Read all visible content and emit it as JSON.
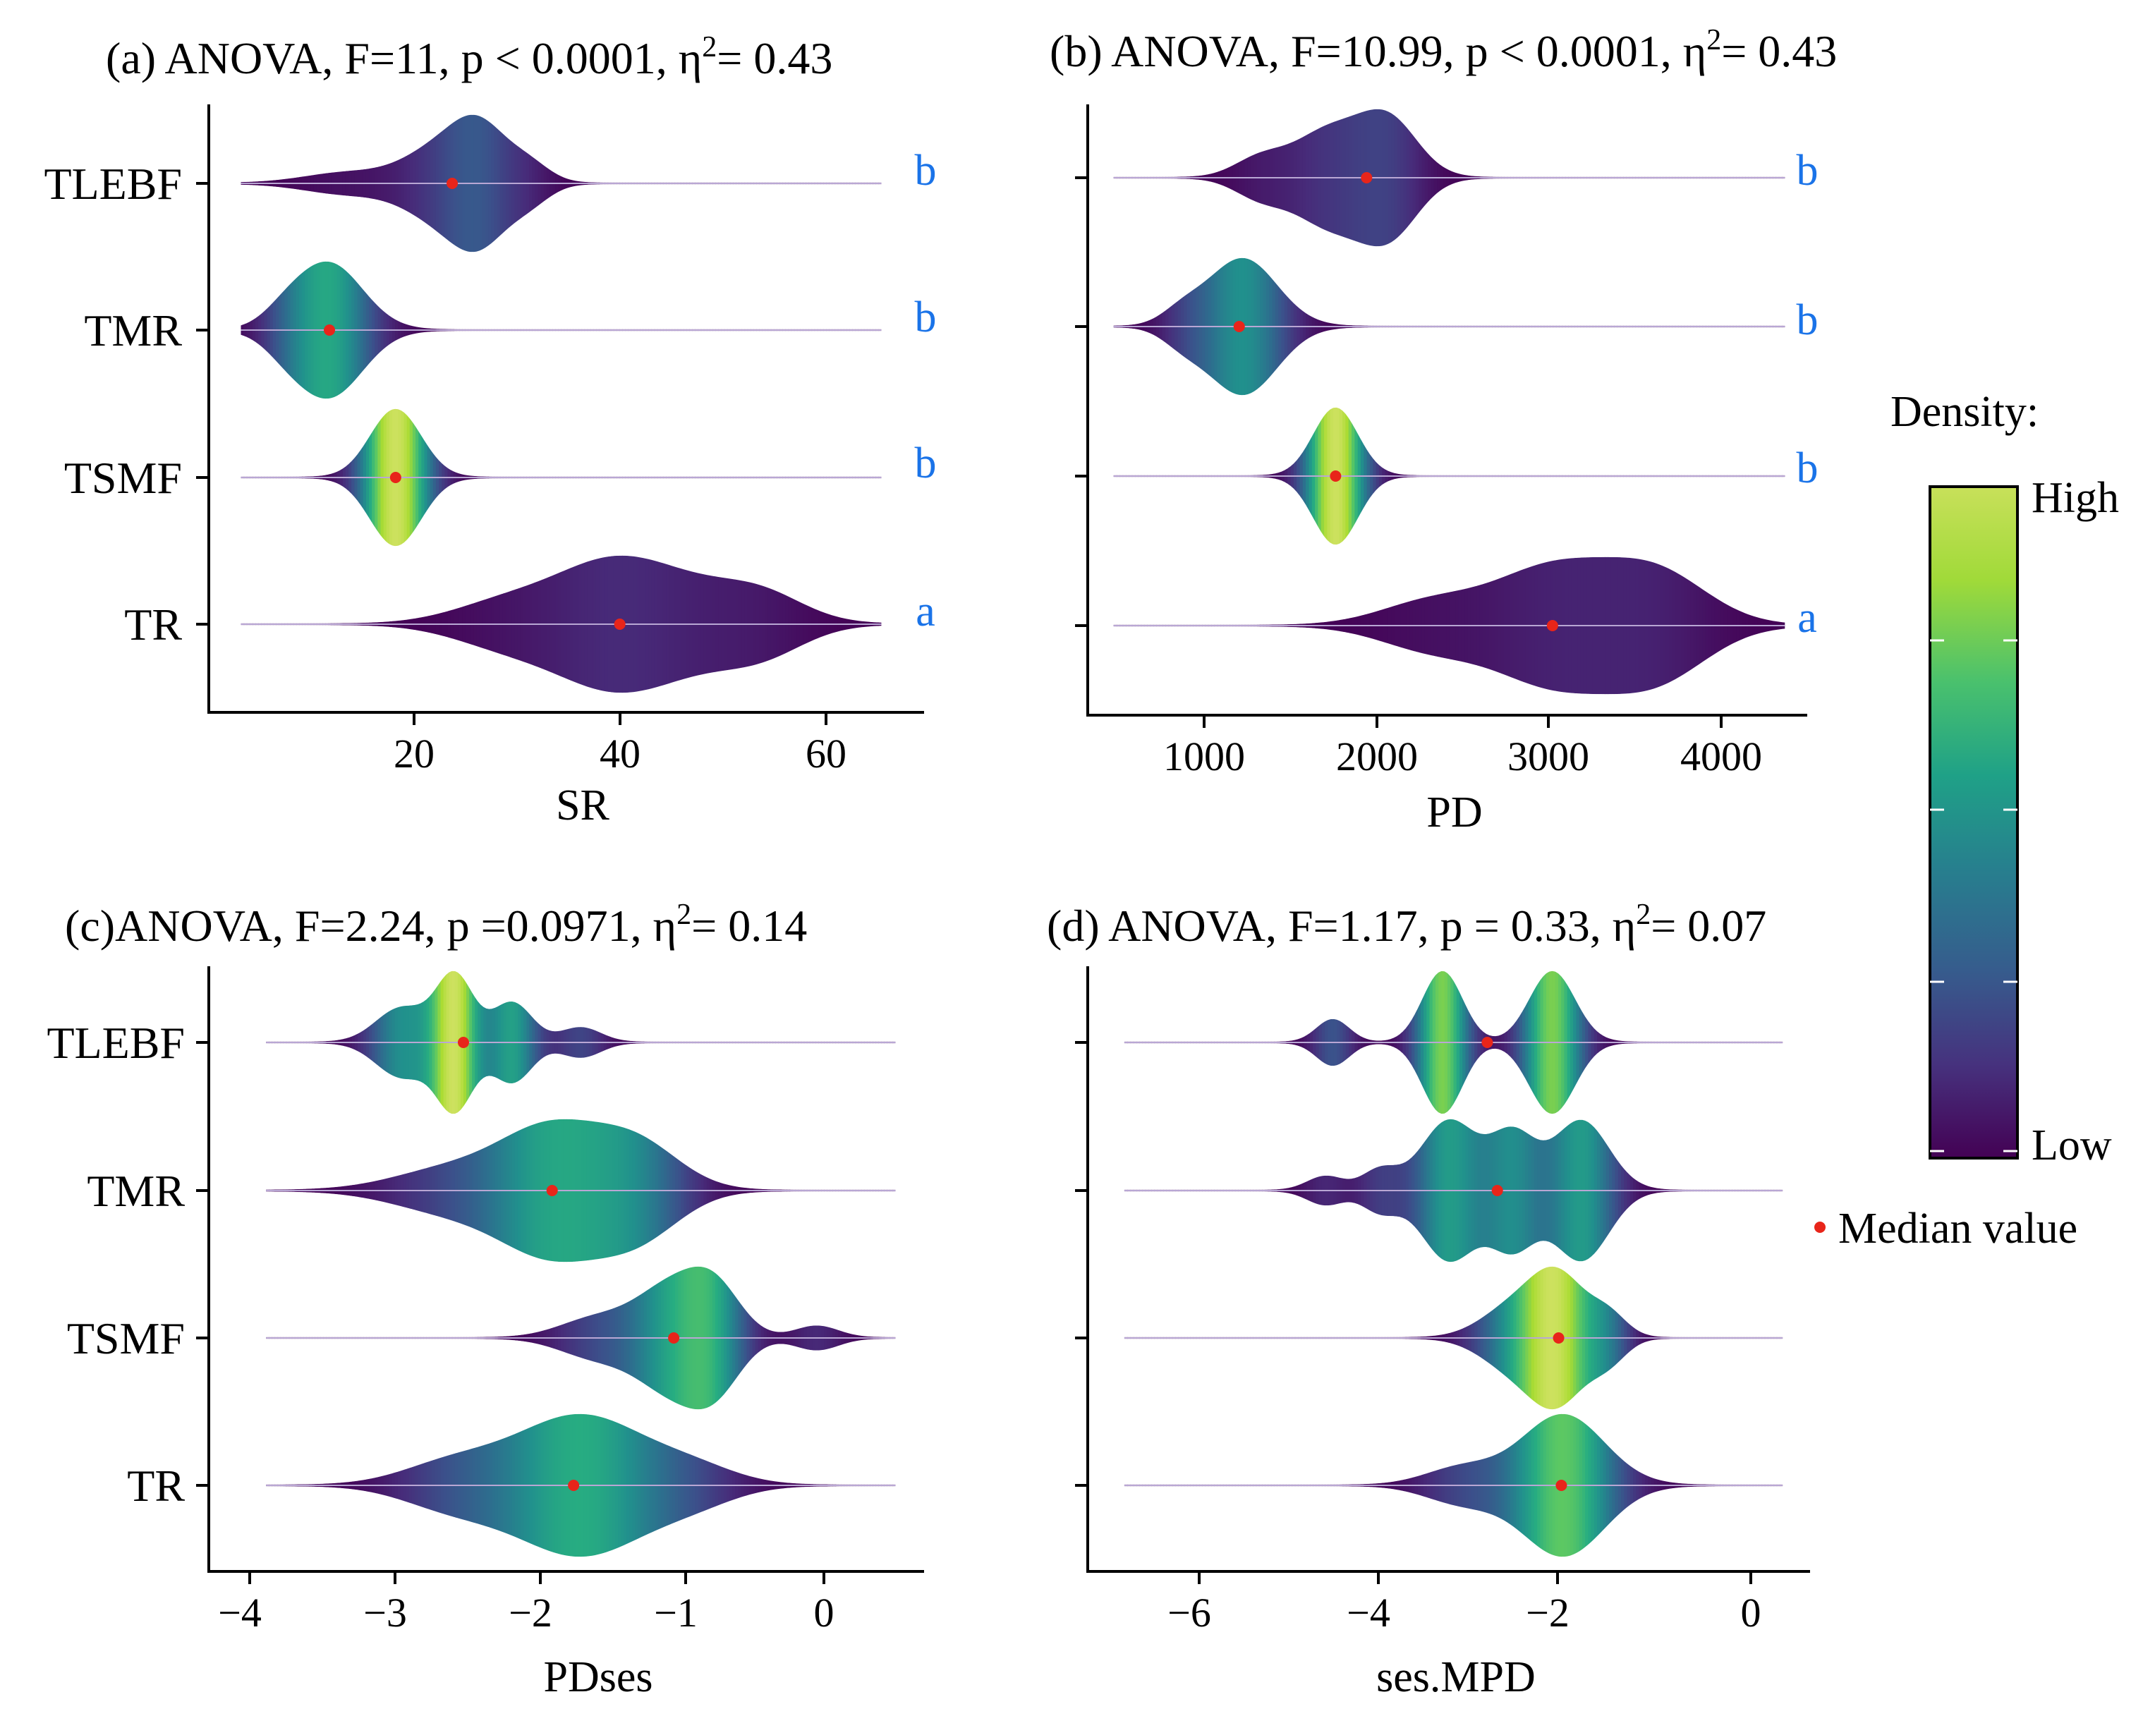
{
  "figure": {
    "legend": {
      "title": "Density:",
      "high_label": "High",
      "low_label": "Low",
      "median_label": "Median value",
      "median_color": "#e8251a",
      "colors": [
        "#440154",
        "#46327e",
        "#365c8d",
        "#277f8e",
        "#1fa187",
        "#4ac16d",
        "#a0da39",
        "#fde725"
      ]
    },
    "letter_color": "#1a73e8"
  },
  "chart_data": [
    {
      "id": "a",
      "type": "violin",
      "title_prefix": "(a) ANOVA, F=11, p < 0.0001, ",
      "eta_symbol": "η",
      "eta_power": "2",
      "eta_value": "= 0.43",
      "xlabel": "SR",
      "xlim": [
        2,
        69
      ],
      "xticks": [
        20,
        40,
        60
      ],
      "xtick_labels": [
        "20",
        "40",
        "60"
      ],
      "categories": [
        "TLEBF",
        "TMR",
        "TSMF",
        "TR"
      ],
      "letters": [
        "b",
        "b",
        "b",
        "a"
      ],
      "series": [
        {
          "name": "TLEBF",
          "median": 24.8,
          "range": [
            5,
            65
          ],
          "peak": 0.28,
          "modes": [
            [
              15,
              4,
              0.12
            ],
            [
              24,
              3.5,
              0.42
            ],
            [
              27.5,
              2.5,
              0.5
            ],
            [
              32,
              2,
              0.2
            ]
          ]
        },
        {
          "name": "TMR",
          "median": 13.3,
          "range": [
            5,
            65
          ],
          "peak": 0.6,
          "modes": [
            [
              13.2,
              3.2,
              1.0
            ],
            [
              9,
              2,
              0.15
            ]
          ]
        },
        {
          "name": "TSMF",
          "median": 19.5,
          "range": [
            5,
            65
          ],
          "peak": 1.0,
          "modes": [
            [
              19.5,
              2.4,
              1.0
            ]
          ]
        },
        {
          "name": "TR",
          "median": 40.5,
          "range": [
            5,
            65
          ],
          "peak": 0.12,
          "modes": [
            [
              39,
              5,
              0.6
            ],
            [
              46,
              6,
              0.5
            ],
            [
              54,
              4,
              0.3
            ],
            [
              30,
              5,
              0.3
            ]
          ]
        }
      ]
    },
    {
      "id": "b",
      "type": "violin",
      "title_prefix": "(b) ANOVA, F=10.99, p < 0.0001, ",
      "eta_symbol": "η",
      "eta_power": "2",
      "eta_value": "= 0.43",
      "xlabel": "PD",
      "xlim": [
        300,
        4480
      ],
      "xticks": [
        1000,
        2000,
        3000,
        4000
      ],
      "xtick_labels": [
        "1000",
        "2000",
        "3000",
        "4000"
      ],
      "categories": [
        "TLEBF",
        "TMR",
        "TSMF",
        "TR"
      ],
      "letters": [
        "b",
        "b",
        "b",
        "a"
      ],
      "series": [
        {
          "name": "TLEBF",
          "median": 1920,
          "range": [
            450,
            4350
          ],
          "peak": 0.2,
          "modes": [
            [
              1700,
              200,
              0.5
            ],
            [
              2050,
              170,
              0.6
            ],
            [
              1300,
              150,
              0.2
            ]
          ]
        },
        {
          "name": "TMR",
          "median": 1180,
          "range": [
            450,
            4350
          ],
          "peak": 0.5,
          "modes": [
            [
              1200,
              200,
              1.0
            ],
            [
              850,
              120,
              0.2
            ]
          ]
        },
        {
          "name": "TSMF",
          "median": 1740,
          "range": [
            450,
            4350
          ],
          "peak": 1.0,
          "modes": [
            [
              1740,
              130,
              1.0
            ]
          ]
        },
        {
          "name": "TR",
          "median": 3000,
          "range": [
            450,
            4350
          ],
          "peak": 0.1,
          "modes": [
            [
              3000,
              330,
              0.6
            ],
            [
              3600,
              300,
              0.55
            ],
            [
              2300,
              300,
              0.25
            ]
          ]
        }
      ]
    },
    {
      "id": "c",
      "type": "violin",
      "title_prefix": "(c)ANOVA, F=2.24, p =0.0971, ",
      "eta_symbol": "η",
      "eta_power": "2",
      "eta_value": "= 0.14",
      "xlabel": "PDses",
      "xlim": [
        -4.4,
        0.6
      ],
      "xticks": [
        -4,
        -3,
        -2,
        -1,
        0
      ],
      "xtick_labels": [
        "−4",
        "−3",
        "−2",
        "−1",
        "0"
      ],
      "categories": [
        "TLEBF",
        "TMR",
        "TSMF",
        "TR"
      ],
      "letters": [
        "",
        "",
        "",
        ""
      ],
      "series": [
        {
          "name": "TLEBF",
          "median": -2.62,
          "range": [
            -4.0,
            0.4
          ],
          "peak": 1.0,
          "modes": [
            [
              -2.68,
              0.13,
              1.0
            ],
            [
              -3.05,
              0.18,
              0.52
            ],
            [
              -2.28,
              0.14,
              0.6
            ],
            [
              -1.8,
              0.14,
              0.22
            ]
          ]
        },
        {
          "name": "TMR",
          "median": -2.0,
          "range": [
            -4.0,
            0.4
          ],
          "peak": 0.6,
          "modes": [
            [
              -2.0,
              0.35,
              0.9
            ],
            [
              -1.4,
              0.3,
              0.65
            ],
            [
              -2.7,
              0.4,
              0.32
            ]
          ]
        },
        {
          "name": "TSMF",
          "median": -1.15,
          "range": [
            -4.0,
            0.4
          ],
          "peak": 0.7,
          "modes": [
            [
              -1.15,
              0.25,
              0.9
            ],
            [
              -0.85,
              0.18,
              0.65
            ],
            [
              -1.7,
              0.25,
              0.32
            ],
            [
              -0.15,
              0.15,
              0.2
            ]
          ]
        },
        {
          "name": "TR",
          "median": -1.85,
          "range": [
            -4.0,
            0.4
          ],
          "peak": 0.62,
          "modes": [
            [
              -1.8,
              0.45,
              1.0
            ],
            [
              -2.7,
              0.35,
              0.3
            ],
            [
              -1.0,
              0.3,
              0.2
            ]
          ]
        }
      ]
    },
    {
      "id": "d",
      "type": "violin",
      "title_prefix": "(d) ANOVA, F=1.17, p = 0.33, ",
      "eta_symbol": "η",
      "eta_power": "2",
      "eta_value": "= 0.07",
      "xlabel": "ses.MPD",
      "xlim": [
        -7.3,
        0.6
      ],
      "xticks": [
        -6,
        -4,
        -2,
        0
      ],
      "xtick_labels": [
        "−6",
        "−4",
        "−2",
        "0"
      ],
      "categories": [
        "TLEBF",
        "TMR",
        "TSMF",
        "TR"
      ],
      "letters": [
        "",
        "",
        "",
        ""
      ],
      "series": [
        {
          "name": "TLEBF",
          "median": -2.93,
          "range": [
            -6.9,
            0.3
          ],
          "peak": 0.8,
          "modes": [
            [
              -3.42,
              0.22,
              1.0
            ],
            [
              -2.22,
              0.25,
              1.0
            ],
            [
              -4.62,
              0.18,
              0.32
            ]
          ]
        },
        {
          "name": "TMR",
          "median": -2.82,
          "range": [
            -6.9,
            0.3
          ],
          "peak": 0.55,
          "modes": [
            [
              -3.35,
              0.3,
              0.75
            ],
            [
              -1.9,
              0.3,
              0.75
            ],
            [
              -2.65,
              0.25,
              0.6
            ],
            [
              -4.7,
              0.2,
              0.15
            ],
            [
              -4.1,
              0.2,
              0.22
            ]
          ]
        },
        {
          "name": "TSMF",
          "median": -2.15,
          "range": [
            -6.9,
            0.3
          ],
          "peak": 1.0,
          "modes": [
            [
              -2.15,
              0.3,
              1.0
            ],
            [
              -2.65,
              0.35,
              0.5
            ],
            [
              -1.6,
              0.2,
              0.35
            ]
          ]
        },
        {
          "name": "TR",
          "median": -2.12,
          "range": [
            -6.9,
            0.3
          ],
          "peak": 0.75,
          "modes": [
            [
              -2.1,
              0.45,
              1.0
            ],
            [
              -3.2,
              0.4,
              0.25
            ]
          ]
        }
      ]
    }
  ]
}
